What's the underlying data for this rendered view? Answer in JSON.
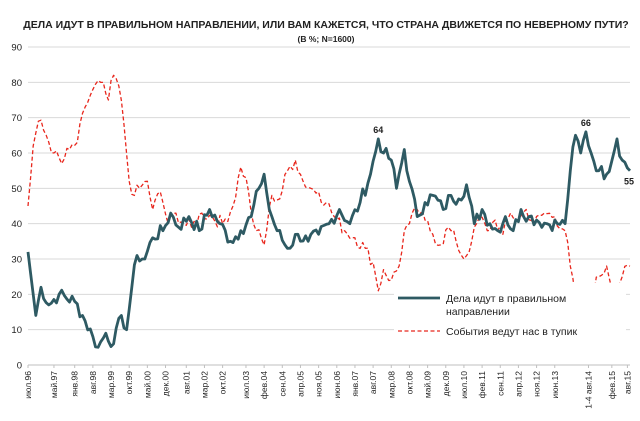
{
  "chart_data": {
    "type": "line",
    "title": "ДЕЛА ИДУТ В ПРАВИЛЬНОМ НАПРАВЛЕНИИ, ИЛИ ВАМ КАЖЕТСЯ, ЧТО СТРАНА ДВИЖЕТСЯ ПО НЕВЕРНОМУ ПУТИ?",
    "subtitle": "(В %; N=1600)",
    "ylim": [
      0,
      90
    ],
    "yticks": [
      0,
      10,
      20,
      30,
      40,
      50,
      60,
      70,
      80,
      90
    ],
    "grid": true,
    "legend_position": "bottom-right",
    "x_tick_labels": [
      "июл.96",
      "май.97",
      "янв.98",
      "авг.98",
      "мар.99",
      "окт.99",
      "май.00",
      "дек.00",
      "авг.01",
      "мар.02",
      "окт.02",
      "июл.03",
      "фев.04",
      "сен.04",
      "апр.05",
      "ноя.05",
      "июн.06",
      "янв.07",
      "авг.07",
      "мар.08",
      "окт.08",
      "май.09",
      "дек.09",
      "июл.10",
      "фев.11",
      "сен.11",
      "апр.12",
      "ноя.12",
      "июн.13",
      "1-4 авг.14",
      "фев.15",
      "авг.15"
    ],
    "x_tick_index": [
      0,
      10,
      18,
      25,
      32,
      39,
      46,
      53,
      61,
      68,
      75,
      84,
      91,
      98,
      105,
      112,
      119,
      126,
      133,
      140,
      147,
      154,
      161,
      168,
      175,
      182,
      189,
      196,
      203,
      216,
      225,
      231
    ],
    "n_points": 233,
    "series": [
      {
        "name": "Дела идут в правильном направлении",
        "color": "#2e5a63",
        "style": "solid",
        "anchors": [
          [
            0,
            32
          ],
          [
            2,
            20
          ],
          [
            3,
            14
          ],
          [
            5,
            22
          ],
          [
            8,
            17
          ],
          [
            12,
            20
          ],
          [
            18,
            18
          ],
          [
            21,
            14
          ],
          [
            25,
            8
          ],
          [
            27,
            5
          ],
          [
            30,
            9
          ],
          [
            33,
            6
          ],
          [
            36,
            14
          ],
          [
            38,
            10
          ],
          [
            40,
            22
          ],
          [
            42,
            31
          ],
          [
            45,
            30
          ],
          [
            48,
            36
          ],
          [
            52,
            38
          ],
          [
            55,
            43
          ],
          [
            58,
            39
          ],
          [
            62,
            42
          ],
          [
            66,
            38
          ],
          [
            70,
            44
          ],
          [
            74,
            40
          ],
          [
            78,
            35
          ],
          [
            82,
            38
          ],
          [
            86,
            42
          ],
          [
            89,
            50
          ],
          [
            91,
            54
          ],
          [
            93,
            44
          ],
          [
            96,
            38
          ],
          [
            100,
            33
          ],
          [
            104,
            37
          ],
          [
            108,
            35
          ],
          [
            112,
            37
          ],
          [
            116,
            40
          ],
          [
            120,
            44
          ],
          [
            124,
            40
          ],
          [
            128,
            46
          ],
          [
            132,
            54
          ],
          [
            135,
            64
          ],
          [
            137,
            60
          ],
          [
            140,
            58
          ],
          [
            142,
            50
          ],
          [
            145,
            61
          ],
          [
            147,
            52
          ],
          [
            150,
            42
          ],
          [
            153,
            46
          ],
          [
            156,
            48
          ],
          [
            160,
            44
          ],
          [
            163,
            48
          ],
          [
            166,
            47
          ],
          [
            169,
            51
          ],
          [
            172,
            40
          ],
          [
            175,
            44
          ],
          [
            178,
            40
          ],
          [
            181,
            38
          ],
          [
            184,
            42
          ],
          [
            187,
            38
          ],
          [
            190,
            44
          ],
          [
            193,
            42
          ],
          [
            196,
            41
          ],
          [
            200,
            40
          ],
          [
            204,
            40
          ],
          [
            207,
            40
          ],
          [
            209,
            55
          ],
          [
            211,
            65
          ],
          [
            213,
            60
          ],
          [
            215,
            66
          ],
          [
            217,
            60
          ],
          [
            220,
            55
          ],
          [
            223,
            54
          ],
          [
            227,
            64
          ],
          [
            229,
            58
          ],
          [
            232,
            55
          ]
        ]
      },
      {
        "name": "События ведут нас в тупик",
        "color": "#e8261c",
        "style": "dashed",
        "anchors": [
          [
            0,
            45
          ],
          [
            2,
            62
          ],
          [
            4,
            69
          ],
          [
            7,
            65
          ],
          [
            10,
            60
          ],
          [
            13,
            57
          ],
          [
            16,
            61
          ],
          [
            19,
            63
          ],
          [
            22,
            73
          ],
          [
            25,
            78
          ],
          [
            28,
            80
          ],
          [
            31,
            75
          ],
          [
            33,
            82
          ],
          [
            35,
            79
          ],
          [
            37,
            68
          ],
          [
            39,
            52
          ],
          [
            41,
            48
          ],
          [
            43,
            50
          ],
          [
            46,
            52
          ],
          [
            48,
            44
          ],
          [
            51,
            49
          ],
          [
            54,
            40
          ],
          [
            57,
            43
          ],
          [
            60,
            40
          ],
          [
            63,
            39
          ],
          [
            67,
            43
          ],
          [
            71,
            42
          ],
          [
            75,
            40
          ],
          [
            79,
            45
          ],
          [
            82,
            56
          ],
          [
            84,
            53
          ],
          [
            86,
            43
          ],
          [
            88,
            38
          ],
          [
            91,
            34
          ],
          [
            94,
            48
          ],
          [
            97,
            47
          ],
          [
            100,
            55
          ],
          [
            103,
            58
          ],
          [
            106,
            52
          ],
          [
            109,
            50
          ],
          [
            112,
            49
          ],
          [
            115,
            46
          ],
          [
            118,
            42
          ],
          [
            122,
            38
          ],
          [
            126,
            36
          ],
          [
            130,
            33
          ],
          [
            133,
            29
          ],
          [
            135,
            21
          ],
          [
            137,
            27
          ],
          [
            140,
            24
          ],
          [
            143,
            28
          ],
          [
            145,
            38
          ],
          [
            147,
            40
          ],
          [
            150,
            44
          ],
          [
            153,
            41
          ],
          [
            156,
            37
          ],
          [
            159,
            34
          ],
          [
            162,
            39
          ],
          [
            165,
            35
          ],
          [
            168,
            30
          ],
          [
            171,
            35
          ],
          [
            174,
            42
          ],
          [
            177,
            38
          ],
          [
            180,
            41
          ],
          [
            183,
            37
          ],
          [
            186,
            43
          ],
          [
            189,
            41
          ],
          [
            192,
            44
          ],
          [
            195,
            40
          ],
          [
            199,
            43
          ],
          [
            203,
            42
          ],
          [
            207,
            38
          ],
          [
            209,
            28
          ],
          [
            211,
            19
          ],
          [
            214,
            22
          ],
          [
            217,
            20
          ],
          [
            220,
            25
          ],
          [
            223,
            28
          ],
          [
            226,
            21
          ],
          [
            229,
            25
          ],
          [
            232,
            28
          ]
        ]
      }
    ],
    "point_labels": [
      {
        "index": 135,
        "series": 0,
        "text": "64"
      },
      {
        "index": 215,
        "series": 0,
        "text": "66"
      },
      {
        "index": 232,
        "series": 0,
        "text": "55"
      }
    ]
  }
}
